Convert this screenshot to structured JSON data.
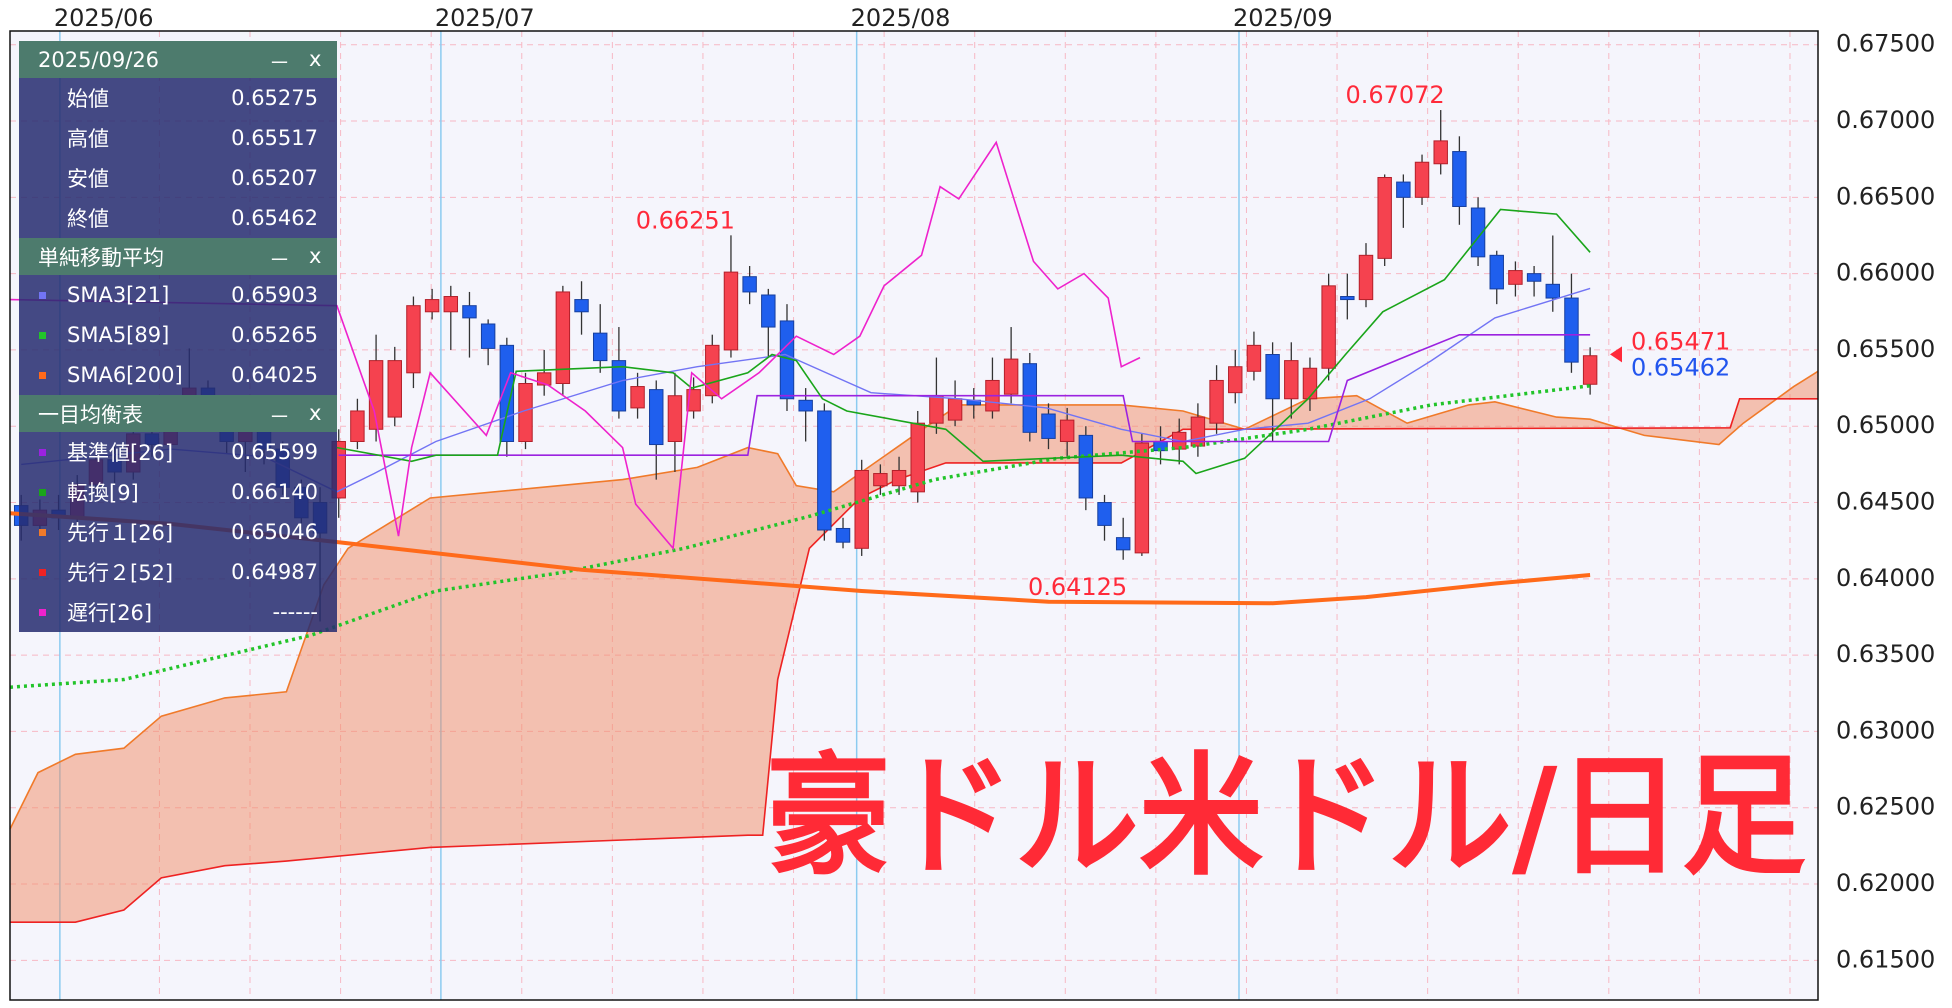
{
  "chart_data": {
    "type": "candlestick",
    "title": "豪ドル米ドル/日足",
    "title_color": "#ff2a36",
    "date": "2025/09/26",
    "ohlc_labels": [
      "始値",
      "高値",
      "安値",
      "終値"
    ],
    "open": [
      0.6448,
      0.6435,
      0.6445,
      0.644,
      0.6462,
      0.6478,
      0.647,
      0.6495,
      0.6488,
      0.651,
      0.6525,
      0.6505,
      0.649,
      0.65,
      0.6485,
      0.646,
      0.645,
      0.6453,
      0.649,
      0.6498,
      0.6506,
      0.6535,
      0.6575,
      0.6575,
      0.6579,
      0.6567,
      0.6553,
      0.649,
      0.6527,
      0.6528,
      0.6583,
      0.6561,
      0.6543,
      0.6512,
      0.6524,
      0.649,
      0.651,
      0.652,
      0.655,
      0.6598,
      0.6586,
      0.6569,
      0.6517,
      0.651,
      0.6433,
      0.642,
      0.6461,
      0.6461,
      0.6457,
      0.6502,
      0.6504,
      0.6517,
      0.651,
      0.6521,
      0.6541,
      0.6508,
      0.649,
      0.6494,
      0.645,
      0.6427,
      0.6417,
      0.649,
      0.6485,
      0.6487,
      0.6502,
      0.6522,
      0.6536,
      0.6547,
      0.6518,
      0.6518,
      0.6538,
      0.6585,
      0.6583,
      0.661,
      0.666,
      0.665,
      0.6672,
      0.668,
      0.6643,
      0.6612,
      0.6593,
      0.66,
      0.6593,
      0.6584,
      0.65275
    ],
    "high": [
      0.6455,
      0.6452,
      0.6455,
      0.6468,
      0.6485,
      0.6488,
      0.65,
      0.6505,
      0.652,
      0.6551,
      0.653,
      0.6512,
      0.6508,
      0.6505,
      0.649,
      0.6465,
      0.646,
      0.6498,
      0.6518,
      0.656,
      0.6552,
      0.6585,
      0.659,
      0.6592,
      0.6588,
      0.657,
      0.6558,
      0.6535,
      0.655,
      0.6592,
      0.6595,
      0.658,
      0.6565,
      0.6535,
      0.653,
      0.6535,
      0.6532,
      0.656,
      0.66251,
      0.6605,
      0.659,
      0.658,
      0.6525,
      0.6515,
      0.644,
      0.6478,
      0.6475,
      0.648,
      0.651,
      0.6545,
      0.653,
      0.6525,
      0.6545,
      0.6565,
      0.6548,
      0.6515,
      0.6512,
      0.65,
      0.6455,
      0.644,
      0.6495,
      0.65,
      0.6505,
      0.6515,
      0.654,
      0.655,
      0.6562,
      0.6555,
      0.6555,
      0.6545,
      0.66,
      0.66,
      0.662,
      0.6665,
      0.6665,
      0.6678,
      0.67072,
      0.669,
      0.665,
      0.6615,
      0.6608,
      0.6605,
      0.6625,
      0.66,
      0.65517
    ],
    "low": [
      0.6425,
      0.643,
      0.6432,
      0.6436,
      0.6455,
      0.6462,
      0.6465,
      0.648,
      0.6482,
      0.6505,
      0.6498,
      0.6482,
      0.647,
      0.6475,
      0.6455,
      0.6432,
      0.6372,
      0.644,
      0.6485,
      0.649,
      0.65,
      0.6525,
      0.657,
      0.655,
      0.6545,
      0.654,
      0.648,
      0.6485,
      0.652,
      0.652,
      0.656,
      0.6535,
      0.6505,
      0.6505,
      0.6465,
      0.647,
      0.6505,
      0.6515,
      0.6545,
      0.658,
      0.6545,
      0.651,
      0.649,
      0.6425,
      0.642,
      0.6415,
      0.6455,
      0.6455,
      0.645,
      0.6495,
      0.65,
      0.6505,
      0.6505,
      0.6515,
      0.649,
      0.6485,
      0.648,
      0.6445,
      0.6425,
      0.64125,
      0.6415,
      0.6475,
      0.6475,
      0.648,
      0.6495,
      0.6515,
      0.653,
      0.649,
      0.6505,
      0.651,
      0.653,
      0.657,
      0.6578,
      0.6605,
      0.663,
      0.6645,
      0.6665,
      0.6632,
      0.6605,
      0.658,
      0.6585,
      0.6585,
      0.6575,
      0.6535,
      0.65207
    ],
    "close": [
      0.6435,
      0.6445,
      0.644,
      0.6462,
      0.6478,
      0.647,
      0.6495,
      0.6488,
      0.651,
      0.6525,
      0.6505,
      0.649,
      0.65,
      0.6485,
      0.646,
      0.644,
      0.643,
      0.649,
      0.651,
      0.6543,
      0.6543,
      0.6579,
      0.6583,
      0.6585,
      0.6571,
      0.6551,
      0.649,
      0.6528,
      0.6535,
      0.6588,
      0.6575,
      0.6543,
      0.651,
      0.6526,
      0.6488,
      0.652,
      0.6524,
      0.6553,
      0.6601,
      0.6588,
      0.6565,
      0.6518,
      0.651,
      0.6432,
      0.6424,
      0.6471,
      0.6469,
      0.6471,
      0.6502,
      0.652,
      0.6518,
      0.6514,
      0.653,
      0.6544,
      0.6496,
      0.6492,
      0.6504,
      0.6453,
      0.6435,
      0.6419,
      0.6489,
      0.6484,
      0.6496,
      0.6506,
      0.653,
      0.6539,
      0.6553,
      0.6518,
      0.6543,
      0.6538,
      0.6592,
      0.6583,
      0.6612,
      0.6663,
      0.665,
      0.6673,
      0.6687,
      0.6644,
      0.6611,
      0.659,
      0.6602,
      0.6595,
      0.6584,
      0.6542,
      0.65462
    ],
    "up_color": "#f5424f",
    "down_color": "#1f5fee",
    "xlim": [
      -0.6,
      96.2
    ],
    "xticks": [
      {
        "value": 2.07,
        "label": "2025/06"
      },
      {
        "value": 22.47,
        "label": "2025/07"
      },
      {
        "value": 44.73,
        "label": "2025/08"
      },
      {
        "value": 65.2,
        "label": "2025/09"
      }
    ],
    "ylim": [
      0.6124,
      0.6759
    ],
    "yticks": [
      {
        "value": 0.615,
        "label": "0.61500"
      },
      {
        "value": 0.62,
        "label": "0.62000"
      },
      {
        "value": 0.625,
        "label": "0.62500"
      },
      {
        "value": 0.63,
        "label": "0.63000"
      },
      {
        "value": 0.635,
        "label": "0.63500"
      },
      {
        "value": 0.64,
        "label": "0.64000"
      },
      {
        "value": 0.645,
        "label": "0.64500"
      },
      {
        "value": 0.65,
        "label": "0.65000"
      },
      {
        "value": 0.655,
        "label": "0.65500"
      },
      {
        "value": 0.66,
        "label": "0.66000"
      },
      {
        "value": 0.665,
        "label": "0.66500"
      },
      {
        "value": 0.67,
        "label": "0.67000"
      },
      {
        "value": 0.675,
        "label": "0.67500"
      }
    ],
    "grid": true,
    "controls": [
      "－",
      "x"
    ],
    "moving_averages": {
      "title": "単純移動平均",
      "series": [
        {
          "name": "SMA3[21]",
          "color": "#7274f4",
          "width": 1.4,
          "panel_value": "0.65903",
          "x": [
            0,
            8,
            13,
            16.9,
            18.9,
            22.2,
            26.9,
            32.2,
            36.2,
            40.9,
            45.5,
            50.2,
            54.9,
            58.9,
            62.2,
            65.5,
            68.9,
            72.2,
            75.5,
            78.9,
            84
          ],
          "values": [
            0.6475,
            0.6485,
            0.648,
            0.6457,
            0.6469,
            0.649,
            0.651,
            0.653,
            0.6539,
            0.6547,
            0.6522,
            0.6518,
            0.6512,
            0.6498,
            0.649,
            0.6498,
            0.6502,
            0.6518,
            0.6543,
            0.6571,
            0.65903
          ]
        },
        {
          "name": "SMA5[89]",
          "color": "#22c42a",
          "width": 3.5,
          "dash": true,
          "panel_value": "0.65265",
          "x": [
            -0.6,
            5.5,
            15.5,
            22.2,
            28.9,
            35.5,
            42.2,
            48.9,
            55.5,
            62.2,
            68.9,
            75.5,
            84
          ],
          "values": [
            0.6329,
            0.6334,
            0.6363,
            0.6392,
            0.6404,
            0.642,
            0.6441,
            0.6465,
            0.6479,
            0.6486,
            0.6498,
            0.6514,
            0.65265
          ]
        },
        {
          "name": "SMA6[200]",
          "color": "#ff6a1a",
          "width": 4,
          "panel_value": "0.64025",
          "x": [
            -0.6,
            8,
            17,
            30,
            45,
            55,
            67,
            72,
            79,
            84
          ],
          "values": [
            0.6443,
            0.6436,
            0.6424,
            0.6406,
            0.6392,
            0.6385,
            0.6384,
            0.6388,
            0.6397,
            0.64025
          ]
        }
      ]
    },
    "ichimoku": {
      "title": "一目均衡表",
      "cloud_color": "rgba(242,140,100,0.5)",
      "series": [
        {
          "name": "基準値[26]",
          "color": "#9b22e0",
          "width": 1.6,
          "panel_value": "0.65599",
          "x": [
            17,
            38.9,
            39.4,
            59,
            59.5,
            70,
            71,
            75,
            77,
            84
          ],
          "values": [
            0.6481,
            0.6481,
            0.652,
            0.652,
            0.649,
            0.649,
            0.653,
            0.655,
            0.65599,
            0.65599
          ]
        },
        {
          "name": "転換[9]",
          "color": "#1aa51a",
          "width": 1.6,
          "panel_value": "0.66140",
          "x": [
            16.9,
            20.9,
            22.2,
            25.5,
            26.5,
            32.2,
            34.9,
            35.9,
            38.9,
            40.2,
            41.5,
            42.9,
            44.2,
            49.5,
            51.5,
            58.9,
            62.2,
            62.9,
            65.5,
            68.9,
            70.9,
            72.9,
            76.2,
            79.2,
            82.2,
            84
          ],
          "values": [
            0.6486,
            0.6477,
            0.6481,
            0.6481,
            0.6536,
            0.6539,
            0.6535,
            0.6525,
            0.6535,
            0.6547,
            0.6543,
            0.6518,
            0.651,
            0.6498,
            0.6477,
            0.6481,
            0.6477,
            0.6469,
            0.6479,
            0.6518,
            0.6547,
            0.6575,
            0.6596,
            0.6642,
            0.6639,
            0.6614
          ]
        },
        {
          "name": "先行１[26]",
          "color": "#f07a2a",
          "width": 1.6,
          "panel_value": "0.65046",
          "x": [
            -0.6,
            0.9,
            2.9,
            5.5,
            7.5,
            10.9,
            14.2,
            16.2,
            17.5,
            21.9,
            32.2,
            36.2,
            38.9,
            40.5,
            41.5,
            43.5,
            45,
            48.5,
            50.2,
            58.9,
            62.2,
            65.5,
            68.9,
            71.5,
            74.2,
            77.5,
            78.9,
            82.2,
            84,
            86.9,
            90.9,
            92.2,
            94.9,
            96.2
          ],
          "values": [
            0.6236,
            0.6273,
            0.6285,
            0.6289,
            0.631,
            0.6322,
            0.6326,
            0.6396,
            0.642,
            0.6453,
            0.6465,
            0.6473,
            0.6486,
            0.6482,
            0.6461,
            0.6457,
            0.647,
            0.65,
            0.6514,
            0.6514,
            0.651,
            0.6498,
            0.6518,
            0.652,
            0.6502,
            0.6514,
            0.6516,
            0.6506,
            0.65046,
            0.6494,
            0.6488,
            0.6502,
            0.6526,
            0.6536
          ]
        },
        {
          "name": "先行２[52]",
          "color": "#ee2222",
          "width": 1.6,
          "panel_value": "0.64987",
          "x": [
            -0.6,
            2.9,
            5.5,
            7.5,
            10.9,
            14.2,
            21.9,
            38.9,
            39.7,
            40.5,
            42.2,
            44.9,
            46.9,
            49.5,
            58.9,
            62.2,
            84,
            91.5,
            92,
            96.2
          ],
          "values": [
            0.6175,
            0.6175,
            0.6183,
            0.6204,
            0.6212,
            0.6215,
            0.6224,
            0.6232,
            0.6232,
            0.6334,
            0.642,
            0.6453,
            0.6465,
            0.6476,
            0.6476,
            0.6498,
            0.64987,
            0.6499,
            0.6518,
            0.6518
          ]
        },
        {
          "name": "遅行[26]",
          "color": "#ee22cc",
          "width": 1.6,
          "panel_value": "------",
          "x": [
            -0.6,
            16.9,
            18.9,
            20.2,
            20.9,
            21.9,
            24.9,
            26.2,
            28.2,
            30.2,
            32.2,
            32.9,
            34.9,
            35.9,
            37.5,
            39.5,
            41.5,
            43.5,
            44.9,
            46.2,
            48.2,
            49.2,
            50.2,
            52.2,
            54.2,
            55.5,
            56.9,
            58.2,
            58.9,
            59.9
          ],
          "values": [
            0.6583,
            0.6579,
            0.651,
            0.6428,
            0.6486,
            0.6535,
            0.6494,
            0.6535,
            0.6527,
            0.651,
            0.6486,
            0.6449,
            0.642,
            0.6535,
            0.6518,
            0.6535,
            0.6559,
            0.6547,
            0.6559,
            0.6592,
            0.6612,
            0.6657,
            0.6649,
            0.6686,
            0.6608,
            0.659,
            0.66,
            0.6584,
            0.6539,
            0.6545
          ]
        }
      ]
    },
    "annotations": [
      {
        "x": 38,
        "value": 0.66251,
        "position": "above",
        "color": "#ff2a3a"
      },
      {
        "x": 76,
        "value": 0.67072,
        "position": "above",
        "color": "#ff2a3a"
      },
      {
        "x": 59,
        "value": 0.64125,
        "position": "below",
        "color": "#ff2a3a"
      }
    ],
    "price_labels": [
      {
        "value": 0.65471,
        "color": "#ff2a3a"
      },
      {
        "value": 0.65462,
        "color": "#2255ee"
      }
    ]
  }
}
